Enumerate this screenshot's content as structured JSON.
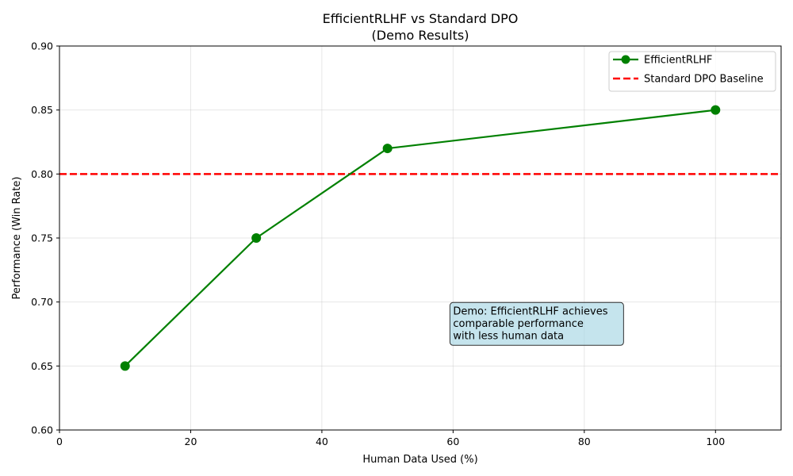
{
  "chart_data": {
    "type": "line",
    "title": "EfficientRLHF vs Standard DPO",
    "subtitle": "(Demo Results)",
    "xlabel": "Human Data Used (%)",
    "ylabel": "Performance (Win Rate)",
    "xlim": [
      0,
      110
    ],
    "ylim": [
      0.6,
      0.9
    ],
    "xticks": [
      "0",
      "20",
      "40",
      "60",
      "80",
      "100"
    ],
    "xtick_values": [
      0,
      20,
      40,
      60,
      80,
      100
    ],
    "yticks": [
      "0.60",
      "0.65",
      "0.70",
      "0.75",
      "0.80",
      "0.85",
      "0.90"
    ],
    "ytick_values": [
      0.6,
      0.65,
      0.7,
      0.75,
      0.8,
      0.85,
      0.9
    ],
    "grid": true,
    "legend_position": "top-right",
    "series": [
      {
        "name": "EfficientRLHF",
        "style": "solid-with-markers",
        "color": "#008000",
        "x": [
          10,
          30,
          50,
          100
        ],
        "y": [
          0.65,
          0.75,
          0.82,
          0.85
        ]
      }
    ],
    "baseline": {
      "name": "Standard DPO Baseline",
      "style": "dashed",
      "color": "#ff0000",
      "y": 0.8
    },
    "annotation": {
      "lines": [
        "Demo: EfficientRLHF achieves",
        "comparable performance",
        "with less human data"
      ],
      "box_color": "#add8e6",
      "x": 60,
      "y": 0.668
    }
  }
}
